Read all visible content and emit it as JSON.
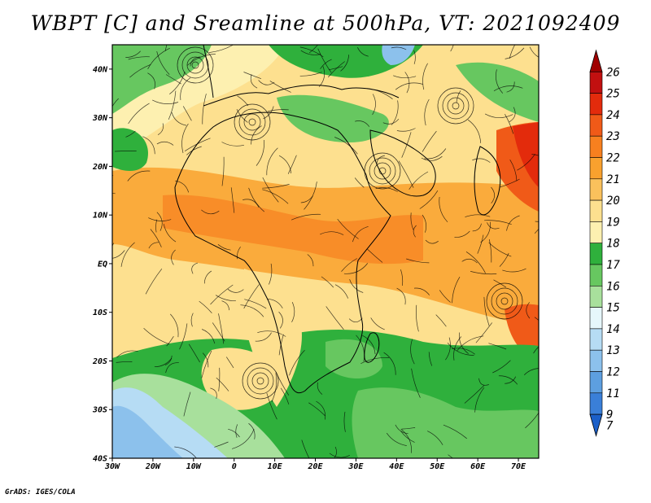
{
  "title": "WBPT [C] and Sreamline at 500hPa, VT: 2021092409",
  "footer": "GrADS: IGES/COLA",
  "map": {
    "lon_range": [
      -30,
      75
    ],
    "lat_range": [
      -40,
      45
    ],
    "lat_ticks": [
      {
        "value": 40,
        "label": "40N"
      },
      {
        "value": 30,
        "label": "30N"
      },
      {
        "value": 20,
        "label": "20N"
      },
      {
        "value": 10,
        "label": "10N"
      },
      {
        "value": 0,
        "label": "EQ"
      },
      {
        "value": -10,
        "label": "10S"
      },
      {
        "value": -20,
        "label": "20S"
      },
      {
        "value": -30,
        "label": "30S"
      },
      {
        "value": -40,
        "label": "40S"
      }
    ],
    "lon_ticks": [
      {
        "value": -30,
        "label": "30W"
      },
      {
        "value": -20,
        "label": "20W"
      },
      {
        "value": -10,
        "label": "10W"
      },
      {
        "value": 0,
        "label": "0"
      },
      {
        "value": 10,
        "label": "10E"
      },
      {
        "value": 20,
        "label": "20E"
      },
      {
        "value": 30,
        "label": "30E"
      },
      {
        "value": 40,
        "label": "40E"
      },
      {
        "value": 50,
        "label": "50E"
      },
      {
        "value": 60,
        "label": "60E"
      },
      {
        "value": 70,
        "label": "70E"
      }
    ]
  },
  "colorbar": {
    "levels": [
      {
        "label": "26",
        "color": "#a00000"
      },
      {
        "label": "25",
        "color": "#c21010"
      },
      {
        "label": "24",
        "color": "#e32b0c"
      },
      {
        "label": "23",
        "color": "#f05a18"
      },
      {
        "label": "22",
        "color": "#f7801f"
      },
      {
        "label": "21",
        "color": "#f9a12e"
      },
      {
        "label": "20",
        "color": "#fac15c"
      },
      {
        "label": "19",
        "color": "#fde08f"
      },
      {
        "label": "18",
        "color": "#fdf0b0"
      },
      {
        "label": "17",
        "color": "#2fb03c"
      },
      {
        "label": "16",
        "color": "#67c760"
      },
      {
        "label": "15",
        "color": "#a8e09c"
      },
      {
        "label": "14",
        "color": "#e6f7fb"
      },
      {
        "label": "13",
        "color": "#b6dcf4"
      },
      {
        "label": "12",
        "color": "#8cc1ec"
      },
      {
        "label": "11",
        "color": "#5d9fe0"
      },
      {
        "label": "9",
        "color": "#3a7fd8"
      },
      {
        "label": "7",
        "color": "#1b5fc8"
      }
    ]
  }
}
